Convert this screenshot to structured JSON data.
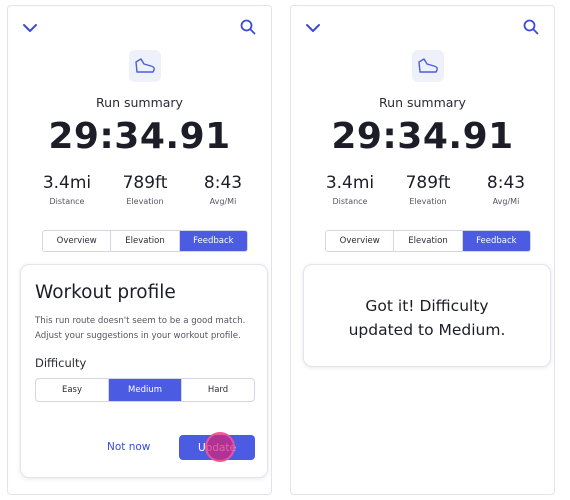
{
  "screens": [
    {
      "run_summary_title": "Run summary",
      "run_time": "29:34.91",
      "stats": [
        {
          "value": "3.4mi",
          "label": "Distance"
        },
        {
          "value": "789ft",
          "label": "Elevation"
        },
        {
          "value": "8:43",
          "label": "Avg/Mi"
        }
      ],
      "tabs": [
        {
          "label": "Overview",
          "active": false
        },
        {
          "label": "Elevation",
          "active": false
        },
        {
          "label": "Feedback",
          "active": true
        }
      ],
      "profile_card": {
        "title": "Workout profile",
        "description": "This run route doesn't seem to be a good match. Adjust your suggestions in your workout profile.",
        "difficulty_label": "Difficulty",
        "options": [
          {
            "label": "Easy",
            "selected": false
          },
          {
            "label": "Medium",
            "selected": true
          },
          {
            "label": "Hard",
            "selected": false
          }
        ],
        "not_now_label": "Not now",
        "update_label": "Update"
      }
    },
    {
      "run_summary_title": "Run summary",
      "run_time": "29:34.91",
      "stats": [
        {
          "value": "3.4mi",
          "label": "Distance"
        },
        {
          "value": "789ft",
          "label": "Elevation"
        },
        {
          "value": "8:43",
          "label": "Avg/Mi"
        }
      ],
      "tabs": [
        {
          "label": "Overview",
          "active": false
        },
        {
          "label": "Elevation",
          "active": false
        },
        {
          "label": "Feedback",
          "active": true
        }
      ],
      "confirm_card": {
        "line1": "Got it! Difficulty",
        "line2": "updated to Medium."
      }
    }
  ],
  "icons": {
    "collapse": "chevron-down-icon",
    "search": "search-icon",
    "workout": "shoe-icon"
  },
  "colors": {
    "accent": "#4b5ce3",
    "link": "#3a4bd8",
    "tap_indicator": "#d62478"
  }
}
